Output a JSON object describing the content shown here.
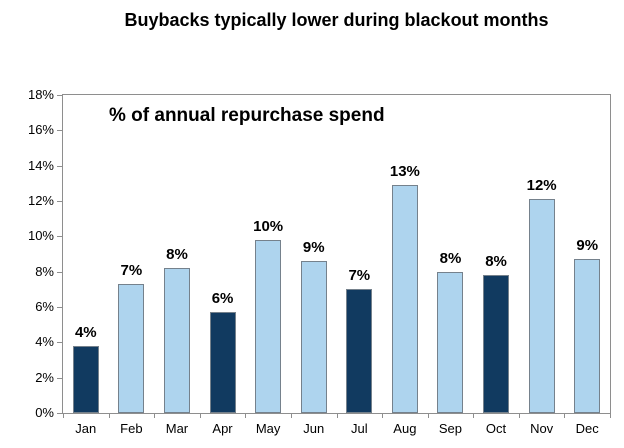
{
  "chart_data": {
    "type": "bar",
    "title": "Buybacks typically lower during blackout months",
    "inner_label": "% of annual repurchase spend",
    "categories": [
      "Jan",
      "Feb",
      "Mar",
      "Apr",
      "May",
      "Jun",
      "Jul",
      "Aug",
      "Sep",
      "Oct",
      "Nov",
      "Dec"
    ],
    "values": [
      3.8,
      7.3,
      8.2,
      5.7,
      9.8,
      8.6,
      7.0,
      12.9,
      8.0,
      7.8,
      12.1,
      8.7
    ],
    "labels": [
      "4%",
      "7%",
      "8%",
      "6%",
      "10%",
      "9%",
      "7%",
      "13%",
      "8%",
      "8%",
      "12%",
      "9%"
    ],
    "blackout_months": [
      "Jan",
      "Apr",
      "Jul",
      "Oct"
    ],
    "xlabel": "",
    "ylabel": "",
    "ylim": [
      0,
      18
    ],
    "ytick_step": 2,
    "ytick_suffix": "%",
    "grid": false,
    "legend": "none",
    "colors": {
      "bar_default": "#aed4ee",
      "bar_blackout": "#113a60",
      "bar_border": "#75818c",
      "axis": "#8e8e8e",
      "text": "#000000"
    }
  }
}
